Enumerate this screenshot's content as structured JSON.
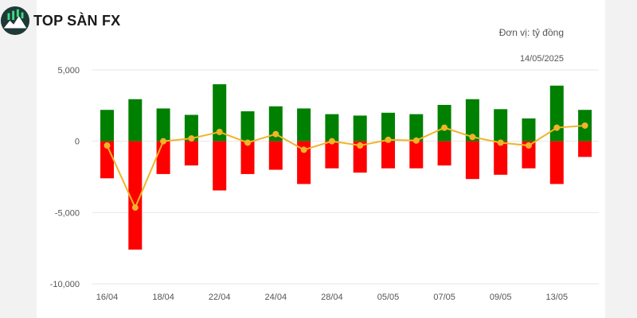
{
  "brand": {
    "name": "TOP SÀN FX",
    "logo_icon": "chart-mountain-logo-icon"
  },
  "chart_meta": {
    "unit": "Đơn vị: tỷ đồng",
    "date": "14/05/2025"
  },
  "colors": {
    "buy": "#008000",
    "sell": "#ff0000",
    "net": "#f0b429",
    "grid": "#e6e6e6"
  },
  "chart_data": {
    "type": "bar",
    "title": "",
    "x_tick_labels": [
      "16/04",
      "18/04",
      "22/04",
      "24/04",
      "28/04",
      "05/05",
      "07/05",
      "09/05",
      "13/05"
    ],
    "y_tick_labels": [
      "5,000",
      "0",
      "-5,000",
      "-10,000"
    ],
    "y_ticks": [
      5000,
      0,
      -5000,
      -10000
    ],
    "ylim": [
      -10000,
      5000
    ],
    "legend": "none",
    "grid": true,
    "series": [
      {
        "type": "bar",
        "values": [
          2200,
          2950,
          2300,
          1850,
          4000,
          2100,
          2450,
          2300,
          1900,
          1800,
          2000,
          1900,
          2550,
          2950,
          2250,
          1600,
          3900,
          2200
        ]
      },
      {
        "type": "bar",
        "values": [
          -2600,
          -7600,
          -2300,
          -1700,
          -3450,
          -2300,
          -2000,
          -3000,
          -1900,
          -2200,
          -1900,
          -1900,
          -1700,
          -2650,
          -2350,
          -1900,
          -3000,
          -1100
        ]
      },
      {
        "type": "line",
        "values": [
          -300,
          -4650,
          0,
          200,
          650,
          -100,
          500,
          -600,
          0,
          -300,
          100,
          50,
          950,
          300,
          -100,
          -300,
          950,
          1100
        ]
      }
    ]
  }
}
